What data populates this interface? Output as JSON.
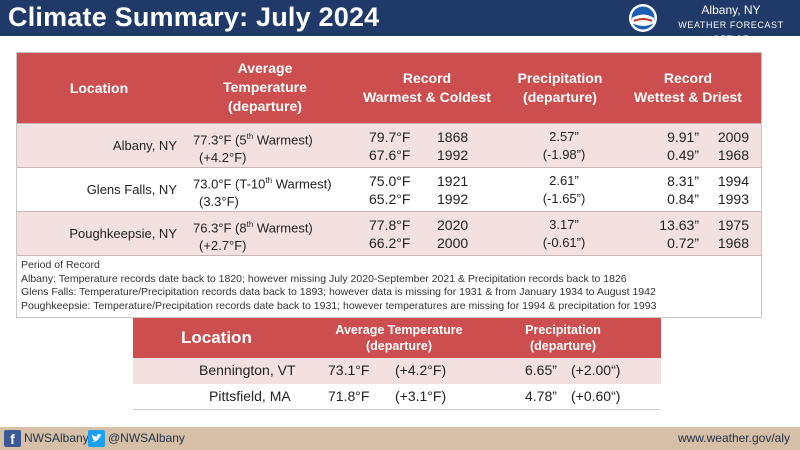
{
  "header": {
    "title": "Climate Summary: July 2024",
    "office_city": "Albany, NY",
    "office_name": "WEATHER FORECAST OFFICE",
    "logo": "noaa-nws-logo-icon"
  },
  "main_table": {
    "headers": {
      "location": "Location",
      "avg_line1": "Average",
      "avg_line2": "Temperature",
      "avg_line3": "(departure)",
      "record_line1": "Record",
      "record_line2": "Warmest & Coldest",
      "precip_line1": "Precipitation",
      "precip_line2": "(departure)",
      "wet_line1": "Record",
      "wet_line2": "Wettest & Driest"
    },
    "rows": [
      {
        "location": "Albany,  NY",
        "avg_temp": "77.3°F (5",
        "avg_sup": "th",
        "avg_rank": " Warmest)",
        "avg_dep": "(+4.2°F)",
        "warm_val": "79.7°F",
        "warm_year": "1868",
        "cold_val": "67.6°F",
        "cold_year": "1992",
        "precip": "2.57”",
        "precip_dep": "(-1.98”)",
        "wet_val": "9.91”",
        "wet_year": "2009",
        "dry_val": "0.49”",
        "dry_year": "1968"
      },
      {
        "location": "Glens Falls, NY",
        "avg_temp": "73.0°F (T-10",
        "avg_sup": "th",
        "avg_rank": " Warmest)",
        "avg_dep": "(3.3°F)",
        "warm_val": "75.0°F",
        "warm_year": "1921",
        "cold_val": "65.2°F",
        "cold_year": "1992",
        "precip": "2.61”",
        "precip_dep": "(-1.65”)",
        "wet_val": "8.31”",
        "wet_year": "1994",
        "dry_val": "0.84”",
        "dry_year": "1993"
      },
      {
        "location": "Poughkeepsie,  NY",
        "avg_temp": "76.3°F  (8",
        "avg_sup": "th",
        "avg_rank": " Warmest)",
        "avg_dep": "(+2.7°F)",
        "warm_val": "77.8°F",
        "warm_year": "2020",
        "cold_val": "66.2°F",
        "cold_year": "2000",
        "precip": "3.17”",
        "precip_dep": "(-0.61”)",
        "wet_val": "13.63”",
        "wet_year": "1975",
        "dry_val": "0.72”",
        "dry_year": "1968"
      }
    ],
    "notes": {
      "title": "Period of Record",
      "albany": "Albany: Temperature records date back to 1820; however missing July 2020-September 2021 & Precipitation records back to 1826",
      "glens_falls": "Glens Falls: Temperature/Precipitation records data back to 1893; however data is missing for 1931 & from January 1934 to August 1942",
      "poughkeepsie": "Poughkeepsie: Temperature/Precipitation records date back to 1931; however temperatures are missing for 1994 & precipitation for 1993"
    }
  },
  "second_table": {
    "headers": {
      "location": "Location",
      "avg_line1": "Average Temperature",
      "avg_line2": "(departure)",
      "precip_line1": "Precipitation",
      "precip_line2": "(departure)"
    },
    "rows": [
      {
        "location": "Bennington, VT",
        "avg_temp": "73.1°F",
        "avg_dep": "(+4.2°F)",
        "precip": "6.65”",
        "precip_dep": "(+2.00“)"
      },
      {
        "location": "Pittsfield, MA",
        "avg_temp": "71.8°F",
        "avg_dep": "(+3.1°F)",
        "precip": "4.78”",
        "precip_dep": "(+0.60“)"
      }
    ]
  },
  "footer": {
    "facebook_icon": "facebook-icon",
    "facebook": "NWSAlbany",
    "twitter_icon": "twitter-icon",
    "twitter": "@NWSAlbany",
    "website": "www.weather.gov/aly"
  },
  "colors": {
    "header_bg": "#1f3a68",
    "table_header_bg": "#cc4e4e",
    "row_alt_bg": "#f3e1e1",
    "footer_bg": "#d5bfa6"
  }
}
